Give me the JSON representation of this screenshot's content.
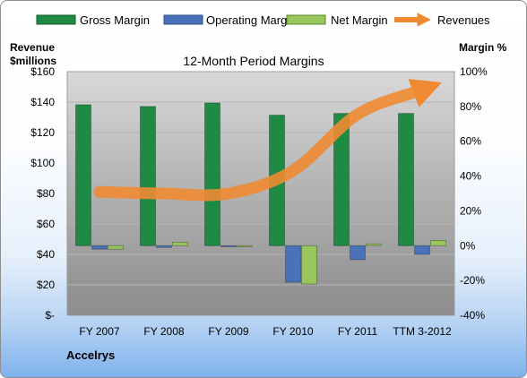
{
  "chart_data": {
    "type": "bar",
    "title": "12-Month Period Margins",
    "company": "Accelrys",
    "left_axis_label_line1": "Revenue",
    "left_axis_label_line2": "$millions",
    "right_axis_label": "Margin %",
    "categories": [
      "FY 2007",
      "FY 2008",
      "FY 2009",
      "FY 2010",
      "FY 2011",
      "TTM 3-2012"
    ],
    "left_axis": {
      "min": 0,
      "max": 160,
      "step": 20,
      "tick_labels": [
        "$-",
        "$20",
        "$40",
        "$60",
        "$80",
        "$100",
        "$120",
        "$140",
        "$160"
      ]
    },
    "right_axis": {
      "min": -40,
      "max": 100,
      "step": 20,
      "tick_labels": [
        "-40%",
        "-20%",
        "0%",
        "20%",
        "40%",
        "60%",
        "80%",
        "100%"
      ]
    },
    "series": [
      {
        "name": "Gross Margin",
        "kind": "bar",
        "axis": "right",
        "color": "#1e8a44",
        "values": [
          81,
          80,
          82,
          75,
          76,
          76
        ]
      },
      {
        "name": "Operating Margin",
        "kind": "bar",
        "axis": "right",
        "color": "#4a72b8",
        "values": [
          -2,
          -1,
          -0.5,
          -21,
          -8,
          -5
        ]
      },
      {
        "name": "Net Margin",
        "kind": "bar",
        "axis": "right",
        "color": "#97c75a",
        "values": [
          -2,
          2,
          -0.5,
          -22,
          1,
          3
        ]
      },
      {
        "name": "Revenues",
        "kind": "line",
        "axis": "left",
        "color": "#ef8a33",
        "values": [
          81,
          80,
          80,
          95,
          132,
          148
        ]
      }
    ],
    "grid": true,
    "legend_position": "top"
  }
}
